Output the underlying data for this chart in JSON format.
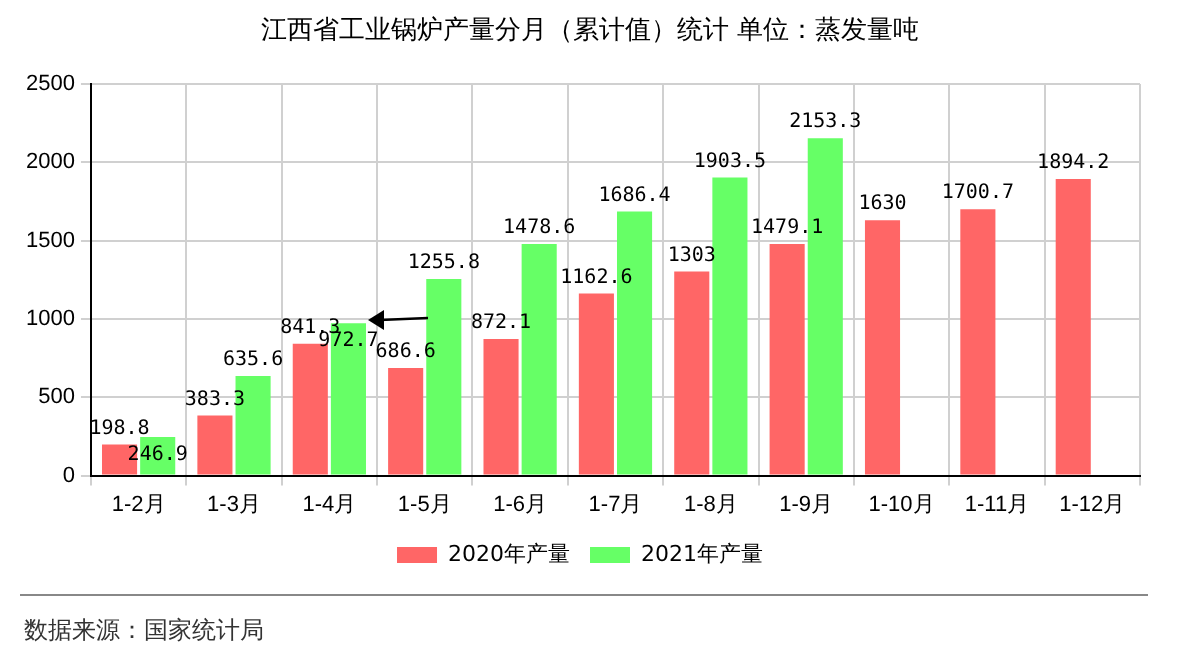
{
  "chart_data": {
    "type": "bar",
    "title": "江西省工业锅炉产量分月（累计值）统计  单位：蒸发量吨",
    "categories": [
      "1-2月",
      "1-3月",
      "1-4月",
      "1-5月",
      "1-6月",
      "1-7月",
      "1-8月",
      "1-9月",
      "1-10月",
      "1-11月",
      "1-12月"
    ],
    "series": [
      {
        "name": "2020年产量",
        "color": "#ff6666",
        "values": [
          198.8,
          383.3,
          841.3,
          686.6,
          872.1,
          1162.6,
          1303,
          1479.1,
          1630,
          1700.7,
          1894.2
        ]
      },
      {
        "name": "2021年产量",
        "color": "#66ff66",
        "values": [
          246.9,
          635.6,
          972.7,
          1255.8,
          1478.6,
          1686.4,
          1903.5,
          2153.3,
          null,
          null,
          null
        ]
      }
    ],
    "ylim": [
      0,
      2500
    ],
    "yticks": [
      0,
      500,
      1000,
      1500,
      2000,
      2500
    ],
    "grid": true,
    "legend": "bottom",
    "data_labels": true,
    "annotations": [
      "数据来源：国家统计局"
    ]
  }
}
